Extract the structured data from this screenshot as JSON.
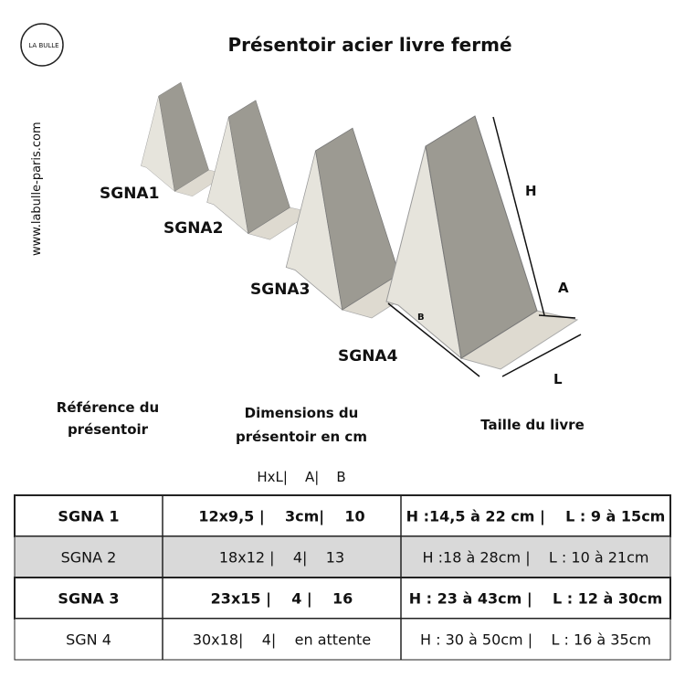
{
  "logo": "LA BULLE",
  "title": "Présentoir acier livre fermé",
  "website": "www.labulle-paris.com",
  "figure": {
    "labels": [
      "SGNA1",
      "SGNA2",
      "SGNA3",
      "SGNA4"
    ],
    "dimensions": {
      "H": "H",
      "A": "A",
      "B": "B",
      "L": "L"
    }
  },
  "columns": [
    "Référence du présentoir",
    "Dimensions du présentoir en cm",
    "Taille du livre"
  ],
  "subheader": "HxL|    A|    B",
  "table": {
    "rows": [
      {
        "cells": [
          "SGNA 1",
          "12x9,5 |    3cm|    10",
          "H :14,5 à 22 cm |    L : 9 à 15cm"
        ],
        "bold": true,
        "shaded": false
      },
      {
        "cells": [
          "SGNA 2",
          "18x12 |    4|    13",
          "H :18 à 28cm |    L : 10 à 21cm"
        ],
        "bold": false,
        "shaded": true
      },
      {
        "cells": [
          "SGNA 3",
          "23x15 |    4 |    16",
          "H : 23 à 43cm |    L : 12 à 30cm"
        ],
        "bold": true,
        "shaded": false
      },
      {
        "cells": [
          "SGN 4",
          "30x18|    4|    en attente",
          "H : 30 à 50cm |    L : 16 à 35cm"
        ],
        "bold": false,
        "shaded": false
      }
    ]
  }
}
